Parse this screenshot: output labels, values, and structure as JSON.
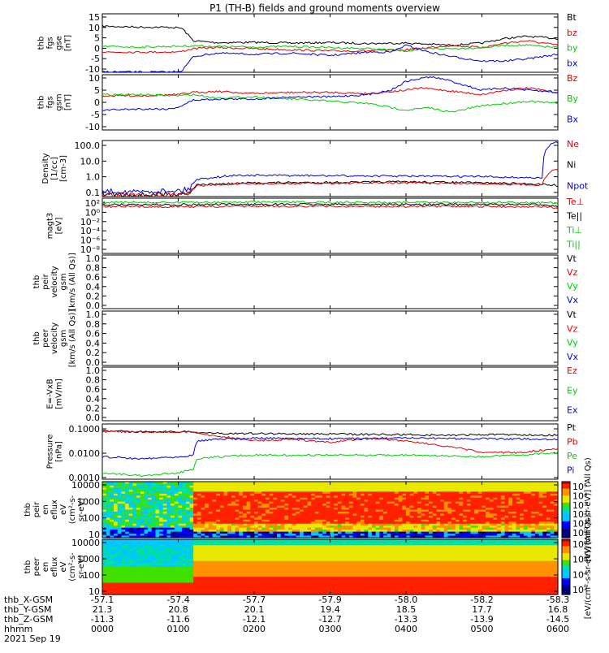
{
  "title": "P1 (TH-B) fields and ground moments overview",
  "colors": {
    "black": "#000000",
    "red": "#e00000",
    "green": "#00cc00",
    "blue": "#0000dd"
  },
  "chart_data": [
    {
      "id": "p1",
      "type": "line",
      "ylabel": [
        "thb",
        "fgs",
        "gse",
        "[nT]"
      ],
      "yticks": [
        "15",
        "10",
        "5",
        "0",
        "-5",
        "-10"
      ],
      "ylim": [
        -10,
        16
      ],
      "legend": [
        {
          "label": "Bt",
          "color": "black"
        },
        {
          "label": "bz",
          "color": "red"
        },
        {
          "label": "by",
          "color": "green"
        },
        {
          "label": "bx",
          "color": "blue"
        }
      ],
      "series": [
        {
          "color": "black",
          "x": [
            0,
            0.5,
            0.9,
            1.05,
            1.2,
            1.5,
            2.0,
            2.5,
            3.0,
            3.5,
            4.0,
            4.3,
            4.6,
            5.0,
            5.3,
            5.6,
            6.0
          ],
          "y": [
            10.5,
            10.1,
            10,
            9.6,
            4,
            3.2,
            3.3,
            3,
            3.2,
            2.8,
            3,
            2.5,
            2,
            3,
            5,
            6,
            5
          ]
        },
        {
          "color": "red",
          "x": [
            0,
            0.5,
            1.0,
            1.2,
            1.5,
            2.0,
            2.5,
            3.0,
            3.5,
            4.0,
            4.3,
            4.6,
            5.0,
            5.3,
            5.6,
            6.0
          ],
          "y": [
            -1,
            -1,
            -1,
            0.5,
            1,
            0.5,
            0,
            -0.5,
            -0.5,
            0,
            1,
            2,
            1,
            3,
            4,
            2
          ]
        },
        {
          "color": "green",
          "x": [
            0,
            0.5,
            1.0,
            1.2,
            1.5,
            2.0,
            2.5,
            3.0,
            3.5,
            4.0,
            4.3,
            4.6,
            5.0,
            5.3,
            5.6,
            6.0
          ],
          "y": [
            1.5,
            1.2,
            1.6,
            1.8,
            1.5,
            1.2,
            1.5,
            1,
            0.5,
            -0.5,
            0.5,
            0.5,
            1,
            2,
            2,
            1
          ]
        },
        {
          "color": "blue",
          "x": [
            0,
            0.5,
            0.9,
            1.05,
            1.2,
            1.5,
            2.0,
            2.5,
            3.0,
            3.5,
            3.8,
            4.0,
            4.3,
            4.6,
            5.0,
            5.3,
            5.6,
            6.0
          ],
          "y": [
            -9.8,
            -9.9,
            -9.9,
            -9.3,
            -3,
            -1.5,
            -2,
            -1.5,
            -2.5,
            -1,
            -1,
            2,
            -1,
            -3,
            -5,
            -5,
            -4,
            -2
          ]
        }
      ]
    },
    {
      "id": "p2",
      "type": "line",
      "ylabel": [
        "thb",
        "fgs",
        "gsm",
        "[nT]"
      ],
      "yticks": [
        "10",
        "5",
        "0",
        "-5",
        "-10"
      ],
      "ylim": [
        -15,
        10
      ],
      "legend": [
        {
          "label": "Bz",
          "color": "red"
        },
        {
          "label": "By",
          "color": "green"
        },
        {
          "label": "Bx",
          "color": "blue"
        }
      ],
      "series": [
        {
          "color": "red",
          "x": [
            0,
            0.5,
            1.0,
            1.2,
            1.5,
            2.0,
            2.5,
            3.0,
            3.5,
            4.0,
            4.2,
            4.5,
            5.0,
            5.3,
            5.6,
            6.0
          ],
          "y": [
            0.5,
            0.5,
            1,
            2,
            2.5,
            1.5,
            2,
            2,
            1.5,
            3,
            4,
            3,
            1,
            3,
            4,
            2
          ]
        },
        {
          "color": "green",
          "x": [
            0,
            0.5,
            1.0,
            1.2,
            1.5,
            2.0,
            2.5,
            3.0,
            3.5,
            4.0,
            4.3,
            4.6,
            5.0,
            5.3,
            5.6,
            6.0
          ],
          "y": [
            1,
            1,
            0.5,
            1,
            -0.5,
            0,
            -1,
            -2,
            -3,
            -6,
            -5,
            -7,
            -4,
            -3,
            -2,
            -3
          ]
        },
        {
          "color": "blue",
          "x": [
            0,
            0.5,
            0.9,
            1.05,
            1.2,
            1.5,
            2.0,
            2.5,
            3.0,
            3.5,
            3.8,
            4.0,
            4.3,
            4.5,
            5.0,
            5.3,
            5.6,
            6.0
          ],
          "y": [
            -6,
            -5.5,
            -5.5,
            -4,
            -1.5,
            -1,
            -1,
            0,
            0,
            1,
            3,
            7,
            9,
            8,
            3,
            4,
            3,
            2
          ]
        }
      ]
    },
    {
      "id": "p3",
      "type": "line",
      "yscale": "log",
      "ylabel": [
        "Density",
        "[1/cc]",
        "[cm-3]"
      ],
      "yticks": [
        "100.0",
        "10.0",
        "1.0",
        "0.1"
      ],
      "ylim": [
        0.04,
        150
      ],
      "legend": [
        {
          "label": "Ne",
          "color": "red"
        },
        {
          "label": "Ni",
          "color": "black"
        },
        {
          "label": "Npot",
          "color": "blue"
        }
      ],
      "series": [
        {
          "color": "black",
          "x": [
            0,
            0.5,
            1.0,
            1.15,
            1.25,
            1.5,
            2.0,
            3.0,
            4.0,
            5.0,
            5.8,
            6.0
          ],
          "y": [
            0.06,
            0.05,
            0.06,
            0.07,
            0.22,
            0.25,
            0.3,
            0.32,
            0.35,
            0.3,
            0.25,
            0.2
          ]
        },
        {
          "color": "red",
          "x": [
            0,
            0.5,
            1.0,
            1.15,
            1.25,
            1.5,
            2.0,
            3.0,
            4.0,
            5.0,
            5.8,
            5.95,
            6.0
          ],
          "y": [
            0.05,
            0.05,
            0.05,
            0.06,
            0.2,
            0.22,
            0.26,
            0.28,
            0.3,
            0.27,
            0.22,
            2,
            2.1
          ]
        },
        {
          "color": "blue",
          "x": [
            0,
            0.5,
            1.0,
            1.15,
            1.25,
            1.5,
            1.75,
            2.0,
            3.0,
            4.0,
            5.0,
            5.8,
            5.95,
            6.0
          ],
          "y": [
            0.09,
            0.08,
            0.1,
            0.12,
            0.5,
            0.7,
            0.9,
            0.9,
            0.85,
            0.8,
            0.75,
            0.6,
            120,
            120
          ]
        }
      ]
    },
    {
      "id": "p4",
      "type": "line",
      "yscale": "log",
      "ylabel": [
        "magt3",
        "[eV]"
      ],
      "yticks": [
        "10²",
        "10⁰",
        "10⁻²",
        "10⁻⁴",
        "10⁻⁶",
        "10⁻⁸"
      ],
      "ylim": [
        1e-09,
        10000.0
      ],
      "legend": [
        {
          "label": "Te⊥",
          "color": "red"
        },
        {
          "label": "Te||",
          "color": "black"
        },
        {
          "label": "Ti⊥",
          "color": "green"
        },
        {
          "label": "Ti||",
          "color": "green"
        }
      ],
      "series": [
        {
          "color": "black",
          "x": [
            0,
            1,
            2,
            3,
            4,
            5,
            5.85,
            6.0
          ],
          "y": [
            300,
            300,
            350,
            350,
            330,
            330,
            300,
            100
          ]
        },
        {
          "color": "red",
          "x": [
            0,
            1,
            2,
            3,
            4,
            5,
            5.85,
            6.0
          ],
          "y": [
            100,
            100,
            120,
            120,
            110,
            110,
            100,
            30
          ]
        },
        {
          "color": "green",
          "x": [
            0,
            1,
            2,
            3,
            4,
            5,
            6.0
          ],
          "y": [
            1000,
            1000,
            1200,
            1100,
            1000,
            1000,
            900
          ]
        }
      ]
    },
    {
      "id": "p5",
      "type": "line",
      "ylabel": [
        "thb",
        "peir",
        "velocity",
        "gsm",
        "[km/s (All Qs)]"
      ],
      "yticks": [
        "1.0",
        "0.8",
        "0.6",
        "0.4",
        "0.2",
        "0.0"
      ],
      "ylim": [
        0,
        1
      ],
      "legend": [
        {
          "label": "Vt",
          "color": "black"
        },
        {
          "label": "Vz",
          "color": "red"
        },
        {
          "label": "Vy",
          "color": "green"
        },
        {
          "label": "Vx",
          "color": "blue"
        }
      ],
      "series": []
    },
    {
      "id": "p6",
      "type": "line",
      "ylabel": [
        "thb",
        "peer",
        "velocity",
        "gsm",
        "[km/s (All Qs)]"
      ],
      "yticks": [
        "1.0",
        "0.8",
        "0.6",
        "0.4",
        "0.2",
        "0.0"
      ],
      "ylim": [
        0,
        1
      ],
      "legend": [
        {
          "label": "Vt",
          "color": "black"
        },
        {
          "label": "Vz",
          "color": "red"
        },
        {
          "label": "Vy",
          "color": "green"
        },
        {
          "label": "Vx",
          "color": "blue"
        }
      ],
      "series": []
    },
    {
      "id": "p7",
      "type": "line",
      "ylabel": [
        "E=-VxB",
        "[mV/m]"
      ],
      "yticks": [
        "1.0",
        "0.8",
        "0.6",
        "0.4",
        "0.2",
        "0.0"
      ],
      "ylim": [
        0,
        1
      ],
      "legend": [
        {
          "label": "Ez",
          "color": "red"
        },
        {
          "label": "Ey",
          "color": "green"
        },
        {
          "label": "Ex",
          "color": "blue"
        }
      ],
      "series": []
    },
    {
      "id": "p8",
      "type": "line",
      "yscale": "log",
      "ylabel": [
        "Pressure",
        "[nPa]"
      ],
      "yticks": [
        "0.1000",
        "0.0100",
        "0.0010"
      ],
      "ylim": [
        0.0002,
        0.1
      ],
      "legend": [
        {
          "label": "Pt",
          "color": "black"
        },
        {
          "label": "Pb",
          "color": "red"
        },
        {
          "label": "Pe",
          "color": "green"
        },
        {
          "label": "Pi",
          "color": "blue"
        }
      ],
      "series": [
        {
          "color": "black",
          "x": [
            0,
            0.5,
            1.0,
            1.2,
            1.5,
            2.0,
            3.0,
            4.0,
            4.5,
            5.0,
            5.5,
            6.0
          ],
          "y": [
            0.045,
            0.042,
            0.042,
            0.04,
            0.035,
            0.034,
            0.032,
            0.03,
            0.028,
            0.03,
            0.03,
            0.028
          ]
        },
        {
          "color": "red",
          "x": [
            0,
            0.5,
            1.0,
            1.2,
            1.5,
            2.0,
            2.5,
            3.0,
            3.5,
            4.0,
            4.5,
            5.0,
            5.5,
            6.0
          ],
          "y": [
            0.043,
            0.04,
            0.04,
            0.039,
            0.025,
            0.015,
            0.018,
            0.012,
            0.02,
            0.015,
            0.008,
            0.004,
            0.004,
            0.006
          ]
        },
        {
          "color": "blue",
          "x": [
            0,
            0.5,
            1.0,
            1.2,
            1.25,
            1.5,
            2.0,
            3.0,
            4.0,
            5.0,
            6.0
          ],
          "y": [
            0.0025,
            0.002,
            0.0025,
            0.003,
            0.015,
            0.018,
            0.02,
            0.019,
            0.02,
            0.019,
            0.018
          ]
        },
        {
          "color": "green",
          "x": [
            0,
            0.5,
            1.0,
            1.2,
            1.25,
            1.5,
            2.0,
            3.0,
            4.0,
            5.0,
            5.5,
            6.0
          ],
          "y": [
            0.0004,
            0.0003,
            0.0004,
            0.0006,
            0.002,
            0.0025,
            0.003,
            0.003,
            0.003,
            0.0025,
            0.003,
            0.004
          ]
        }
      ]
    },
    {
      "id": "p9",
      "type": "heatmap",
      "ylabel": [
        "thb",
        "peir",
        "en",
        "eflux",
        "eV",
        "(cm²-s-",
        "sr-eV)"
      ],
      "yticks": [
        "10000",
        "1000",
        "100",
        "10"
      ],
      "ylim": [
        5,
        25000
      ],
      "colorbar": {
        "ticks": [
          "10⁵",
          "10⁴",
          "10³",
          "10²",
          "10¹",
          "10⁰"
        ],
        "label": "[eV/(cm²-s-sr-eV)] (All Qs)"
      }
    },
    {
      "id": "p10",
      "type": "heatmap",
      "ylabel": [
        "thb",
        "peer",
        "en",
        "eflux",
        "eV",
        "(cm²-s-",
        "sr-eV)"
      ],
      "yticks": [
        "10000",
        "1000",
        "100",
        "10"
      ],
      "ylim": [
        5,
        25000
      ],
      "colorbar": {
        "ticks": [
          "10⁸",
          "10⁶",
          "10⁴",
          "10²"
        ],
        "label": "[eV/(cm²-s-sr-eV)] (All Qs)"
      }
    }
  ],
  "xaxis": {
    "xlim": [
      0,
      6
    ],
    "ticks_x": [
      0,
      1,
      2,
      3,
      4,
      5,
      6
    ],
    "rows": [
      {
        "label": "thb_X-GSM",
        "values": [
          "-57.1",
          "-57.4",
          "-57.7",
          "-57.9",
          "-58.0",
          "-58.2",
          "-58.3"
        ]
      },
      {
        "label": "thb_Y-GSM",
        "values": [
          "21.3",
          "20.8",
          "20.1",
          "19.4",
          "18.5",
          "17.7",
          "16.8"
        ]
      },
      {
        "label": "thb_Z-GSM",
        "values": [
          "-11.3",
          "-11.6",
          "-12.1",
          "-12.7",
          "-13.3",
          "-13.9",
          "-14.5"
        ]
      },
      {
        "label": "hhmm",
        "values": [
          "0000",
          "0100",
          "0200",
          "0300",
          "0400",
          "0500",
          "0600"
        ]
      }
    ],
    "date": "2021 Sep 19"
  }
}
